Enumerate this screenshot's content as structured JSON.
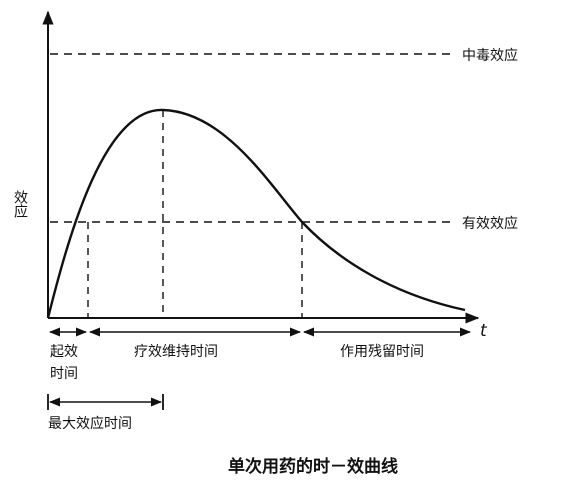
{
  "diagram": {
    "title": "单次用药的时－效曲线",
    "y_axis_label": "效应",
    "x_axis_label": "t",
    "thresholds": {
      "toxic": "中毒效应",
      "effective": "有效效应"
    },
    "periods": {
      "onset_line1": "起效",
      "onset_line2": "时间",
      "duration": "疗效维持时间",
      "residual": "作用残留时间",
      "peak_time": "最大效应时间"
    }
  }
}
